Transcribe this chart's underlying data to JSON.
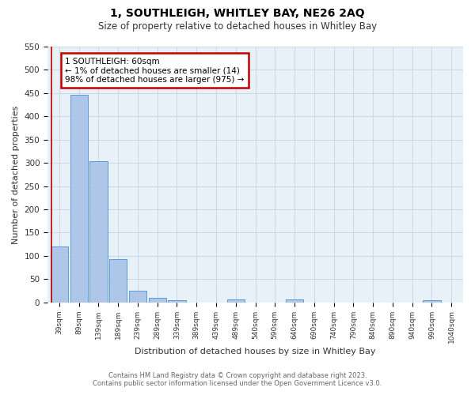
{
  "title": "1, SOUTHLEIGH, WHITLEY BAY, NE26 2AQ",
  "subtitle": "Size of property relative to detached houses in Whitley Bay",
  "xlabel": "Distribution of detached houses by size in Whitley Bay",
  "ylabel": "Number of detached properties",
  "footnote1": "Contains HM Land Registry data © Crown copyright and database right 2023.",
  "footnote2": "Contains public sector information licensed under the Open Government Licence v3.0.",
  "bar_labels": [
    "39sqm",
    "89sqm",
    "139sqm",
    "189sqm",
    "239sqm",
    "289sqm",
    "339sqm",
    "389sqm",
    "439sqm",
    "489sqm",
    "540sqm",
    "590sqm",
    "640sqm",
    "690sqm",
    "740sqm",
    "790sqm",
    "840sqm",
    "890sqm",
    "940sqm",
    "990sqm",
    "1040sqm"
  ],
  "bar_values": [
    120,
    447,
    303,
    93,
    25,
    10,
    5,
    0,
    0,
    6,
    0,
    0,
    6,
    0,
    0,
    0,
    0,
    0,
    0,
    5,
    0
  ],
  "bar_color": "#aec6e8",
  "bar_edge_color": "#5b9bd5",
  "highlight_color": "#c00000",
  "annotation_title": "1 SOUTHLEIGH: 60sqm",
  "annotation_line1": "← 1% of detached houses are smaller (14)",
  "annotation_line2": "98% of detached houses are larger (975) →",
  "annotation_box_color": "#c00000",
  "ylim": [
    0,
    550
  ],
  "yticks": [
    0,
    50,
    100,
    150,
    200,
    250,
    300,
    350,
    400,
    450,
    500,
    550
  ],
  "grid_color": "#c8d8e8",
  "bg_color": "#e8f0f8"
}
